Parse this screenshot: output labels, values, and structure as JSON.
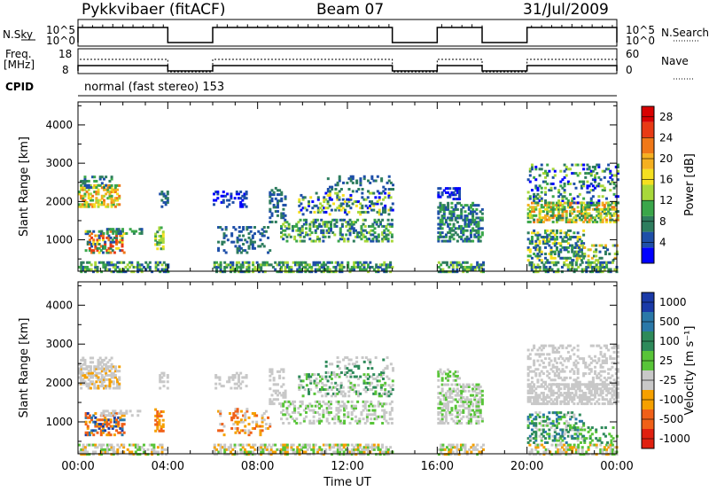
{
  "header": {
    "station": "Pykkvibaer (fitACF)",
    "beam": "Beam 07",
    "date": "31/Jul/2009"
  },
  "panels": {
    "nsky": {
      "label": "N.Sky",
      "ticks": [
        "10^5",
        "10^0"
      ],
      "right_label": "N.Search",
      "right_ticks": [
        "10^5",
        "10^0"
      ]
    },
    "freq": {
      "label_top": "Freq.",
      "label_bottom": "[MHz]",
      "ticks": [
        "18",
        "8"
      ],
      "right_label": "Nave",
      "right_ticks": [
        "60",
        "0"
      ]
    },
    "cpid": {
      "label": "CPID",
      "value": "normal (fast stereo) 153"
    }
  },
  "chart_data": [
    {
      "type": "heatmap",
      "name": "power",
      "ylabel": "Slant Range [km]",
      "yticks": [
        1000,
        2000,
        3000,
        4000
      ],
      "ylim": [
        180,
        4600
      ],
      "xlim": [
        0,
        24
      ],
      "colorbar": {
        "label": "Power [dB]",
        "ticks": [
          4,
          8,
          12,
          16,
          20,
          24,
          28
        ],
        "range": [
          0,
          30
        ],
        "colors": [
          "#0000ff",
          "#1e4fa8",
          "#2e7d5e",
          "#3aa64a",
          "#a8d83a",
          "#f5e020",
          "#f5b020",
          "#f07818",
          "#e83a14",
          "#d80000"
        ]
      }
    },
    {
      "type": "heatmap",
      "name": "velocity",
      "xlabel": "Time UT",
      "ylabel": "Slant Range [km]",
      "xticks": [
        "00:00",
        "04:00",
        "08:00",
        "12:00",
        "16:00",
        "20:00",
        "00:00"
      ],
      "yticks": [
        1000,
        2000,
        3000,
        4000
      ],
      "ylim": [
        180,
        4600
      ],
      "xlim": [
        0,
        24
      ],
      "colorbar": {
        "label": "Velocity [m s^-1]",
        "ticks": [
          1000,
          500,
          100,
          25,
          -25,
          -100,
          -500,
          -1000
        ],
        "colors": [
          "#1a3aa8",
          "#2a78a8",
          "#2e8a5a",
          "#58c438",
          "#c8c8c8",
          "#f5a000",
          "#f06018",
          "#e02010"
        ]
      }
    }
  ],
  "coverage": {
    "on_intervals_ut": [
      [
        0,
        4
      ],
      [
        6,
        14
      ],
      [
        16,
        18
      ],
      [
        20,
        24
      ]
    ]
  }
}
